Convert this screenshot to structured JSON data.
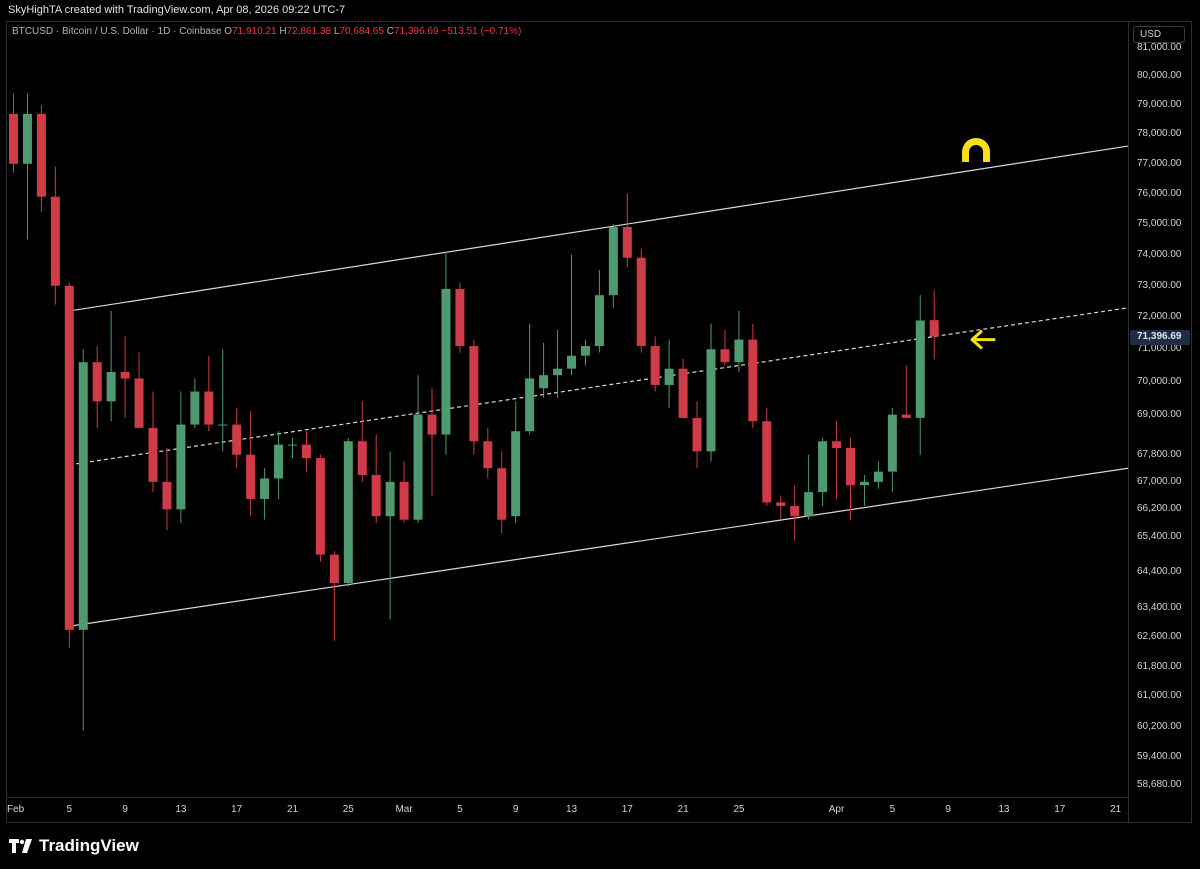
{
  "header": {
    "creator_line": "SkyHighTA created with TradingView.com, Apr 08, 2026 09:22 UTC-7"
  },
  "legend": {
    "symbol": "BTCUSD · Bitcoin / U.S. Dollar · 1D · Coinbase",
    "o_label": "O",
    "o_value": "71,910.21",
    "h_label": "H",
    "h_value": "72,861.38",
    "l_label": "L",
    "l_value": "70,684.65",
    "c_label": "C",
    "c_value": "71,396.69",
    "change": "−513.51 (−0.71%)"
  },
  "axis": {
    "currency": "USD",
    "last_price_label": "71,396.69"
  },
  "footer": {
    "brand": "TradingView"
  },
  "colors": {
    "up": "#4f9a70",
    "down": "#cf3b47",
    "channel": "#d9d9d9",
    "annotation": "#f7e017"
  },
  "chart_data": {
    "type": "candlestick",
    "symbol": "BTCUSD",
    "interval": "1D",
    "y_scale": "log",
    "ylim": [
      58200,
      81500
    ],
    "y_ticks": [
      {
        "value": 81000,
        "label": "81,000.00"
      },
      {
        "value": 80000,
        "label": "80,000.00"
      },
      {
        "value": 79000,
        "label": "79,000.00"
      },
      {
        "value": 78000,
        "label": "78,000.00"
      },
      {
        "value": 77000,
        "label": "77,000.00"
      },
      {
        "value": 76000,
        "label": "76,000.00"
      },
      {
        "value": 75000,
        "label": "75,000.00"
      },
      {
        "value": 74000,
        "label": "74,000.00"
      },
      {
        "value": 73000,
        "label": "73,000.00"
      },
      {
        "value": 72000,
        "label": "72,000.00"
      },
      {
        "value": 71000,
        "label": "71,000.00"
      },
      {
        "value": 70000,
        "label": "70,000.00"
      },
      {
        "value": 69000,
        "label": "69,000.00"
      },
      {
        "value": 67800,
        "label": "67,800.00"
      },
      {
        "value": 67000,
        "label": "67,000.00"
      },
      {
        "value": 66200,
        "label": "66,200.00"
      },
      {
        "value": 65400,
        "label": "65,400.00"
      },
      {
        "value": 64400,
        "label": "64,400.00"
      },
      {
        "value": 63400,
        "label": "63,400.00"
      },
      {
        "value": 62600,
        "label": "62,600.00"
      },
      {
        "value": 61800,
        "label": "61,800.00"
      },
      {
        "value": 61000,
        "label": "61,000.00"
      },
      {
        "value": 60200,
        "label": "60,200.00"
      },
      {
        "value": 59400,
        "label": "59,400.00"
      },
      {
        "value": 58680,
        "label": "58,680.00"
      }
    ],
    "x_ticks": [
      {
        "day": 0,
        "label": "Feb"
      },
      {
        "day": 4,
        "label": "5"
      },
      {
        "day": 8,
        "label": "9"
      },
      {
        "day": 12,
        "label": "13"
      },
      {
        "day": 16,
        "label": "17"
      },
      {
        "day": 20,
        "label": "21"
      },
      {
        "day": 24,
        "label": "25"
      },
      {
        "day": 28,
        "label": "Mar"
      },
      {
        "day": 32,
        "label": "5"
      },
      {
        "day": 36,
        "label": "9"
      },
      {
        "day": 40,
        "label": "13"
      },
      {
        "day": 44,
        "label": "17"
      },
      {
        "day": 48,
        "label": "21"
      },
      {
        "day": 52,
        "label": "25"
      },
      {
        "day": 59,
        "label": "Apr"
      },
      {
        "day": 63,
        "label": "5"
      },
      {
        "day": 67,
        "label": "9"
      },
      {
        "day": 71,
        "label": "13"
      },
      {
        "day": 75,
        "label": "17"
      },
      {
        "day": 79,
        "label": "21"
      }
    ],
    "candles": [
      {
        "date": "2026-02-01",
        "o": 78700,
        "h": 79400,
        "l": 76700,
        "c": 77000
      },
      {
        "date": "2026-02-02",
        "o": 77000,
        "h": 79400,
        "l": 74500,
        "c": 78700
      },
      {
        "date": "2026-02-03",
        "o": 78700,
        "h": 79000,
        "l": 75400,
        "c": 75900
      },
      {
        "date": "2026-02-04",
        "o": 75900,
        "h": 76900,
        "l": 72400,
        "c": 73000
      },
      {
        "date": "2026-02-05",
        "o": 73000,
        "h": 73100,
        "l": 62300,
        "c": 62800
      },
      {
        "date": "2026-02-06",
        "o": 62800,
        "h": 71000,
        "l": 60100,
        "c": 70600
      },
      {
        "date": "2026-02-07",
        "o": 70600,
        "h": 71100,
        "l": 68600,
        "c": 69400
      },
      {
        "date": "2026-02-08",
        "o": 69400,
        "h": 72200,
        "l": 68800,
        "c": 70300
      },
      {
        "date": "2026-02-09",
        "o": 70300,
        "h": 71400,
        "l": 68900,
        "c": 70100
      },
      {
        "date": "2026-02-10",
        "o": 70100,
        "h": 70900,
        "l": 68600,
        "c": 68600
      },
      {
        "date": "2026-02-11",
        "o": 68600,
        "h": 69700,
        "l": 66700,
        "c": 67000
      },
      {
        "date": "2026-02-12",
        "o": 67000,
        "h": 68000,
        "l": 65600,
        "c": 66200
      },
      {
        "date": "2026-02-13",
        "o": 66200,
        "h": 69700,
        "l": 65800,
        "c": 68700
      },
      {
        "date": "2026-02-14",
        "o": 68700,
        "h": 70100,
        "l": 68600,
        "c": 69700
      },
      {
        "date": "2026-02-15",
        "o": 69700,
        "h": 70800,
        "l": 68500,
        "c": 68700
      },
      {
        "date": "2026-02-16",
        "o": 68700,
        "h": 71000,
        "l": 67900,
        "c": 68700
      },
      {
        "date": "2026-02-17",
        "o": 68700,
        "h": 69200,
        "l": 67400,
        "c": 67800
      },
      {
        "date": "2026-02-18",
        "o": 67800,
        "h": 69100,
        "l": 66000,
        "c": 66500
      },
      {
        "date": "2026-02-19",
        "o": 66500,
        "h": 67400,
        "l": 65900,
        "c": 67100
      },
      {
        "date": "2026-02-20",
        "o": 67100,
        "h": 68500,
        "l": 66500,
        "c": 68100
      },
      {
        "date": "2026-02-21",
        "o": 68100,
        "h": 68300,
        "l": 67700,
        "c": 68100
      },
      {
        "date": "2026-02-22",
        "o": 68100,
        "h": 68500,
        "l": 67300,
        "c": 67700
      },
      {
        "date": "2026-02-23",
        "o": 67700,
        "h": 67800,
        "l": 64700,
        "c": 64900
      },
      {
        "date": "2026-02-24",
        "o": 64900,
        "h": 65000,
        "l": 62500,
        "c": 64100
      },
      {
        "date": "2026-02-25",
        "o": 64100,
        "h": 68300,
        "l": 64000,
        "c": 68200
      },
      {
        "date": "2026-02-26",
        "o": 68200,
        "h": 69400,
        "l": 67000,
        "c": 67200
      },
      {
        "date": "2026-02-27",
        "o": 67200,
        "h": 68400,
        "l": 65800,
        "c": 66000
      },
      {
        "date": "2026-02-28",
        "o": 66000,
        "h": 67900,
        "l": 63100,
        "c": 67000
      },
      {
        "date": "2026-03-01",
        "o": 67000,
        "h": 67600,
        "l": 65800,
        "c": 65900
      },
      {
        "date": "2026-03-02",
        "o": 65900,
        "h": 70200,
        "l": 65800,
        "c": 69000
      },
      {
        "date": "2026-03-03",
        "o": 69000,
        "h": 69800,
        "l": 66600,
        "c": 68400
      },
      {
        "date": "2026-03-04",
        "o": 68400,
        "h": 74100,
        "l": 67800,
        "c": 72900
      },
      {
        "date": "2026-03-05",
        "o": 72900,
        "h": 73100,
        "l": 70900,
        "c": 71100
      },
      {
        "date": "2026-03-06",
        "o": 71100,
        "h": 71300,
        "l": 67800,
        "c": 68200
      },
      {
        "date": "2026-03-07",
        "o": 68200,
        "h": 68600,
        "l": 67100,
        "c": 67400
      },
      {
        "date": "2026-03-08",
        "o": 67400,
        "h": 67900,
        "l": 65500,
        "c": 65900
      },
      {
        "date": "2026-03-09",
        "o": 66000,
        "h": 69400,
        "l": 65800,
        "c": 68500
      },
      {
        "date": "2026-03-10",
        "o": 68500,
        "h": 71800,
        "l": 68400,
        "c": 70100
      },
      {
        "date": "2026-03-11",
        "o": 69800,
        "h": 71200,
        "l": 69500,
        "c": 70200
      },
      {
        "date": "2026-03-12",
        "o": 70200,
        "h": 71600,
        "l": 69500,
        "c": 70400
      },
      {
        "date": "2026-03-13",
        "o": 70400,
        "h": 74000,
        "l": 70200,
        "c": 70800
      },
      {
        "date": "2026-03-14",
        "o": 70800,
        "h": 71300,
        "l": 70500,
        "c": 71100
      },
      {
        "date": "2026-03-15",
        "o": 71100,
        "h": 73500,
        "l": 70900,
        "c": 72700
      },
      {
        "date": "2026-03-16",
        "o": 72700,
        "h": 75000,
        "l": 72300,
        "c": 74900
      },
      {
        "date": "2026-03-17",
        "o": 74900,
        "h": 76000,
        "l": 73600,
        "c": 73900
      },
      {
        "date": "2026-03-18",
        "o": 73900,
        "h": 74200,
        "l": 70900,
        "c": 71100
      },
      {
        "date": "2026-03-19",
        "o": 71100,
        "h": 71400,
        "l": 69700,
        "c": 69900
      },
      {
        "date": "2026-03-20",
        "o": 69900,
        "h": 71300,
        "l": 69200,
        "c": 70400
      },
      {
        "date": "2026-03-21",
        "o": 70400,
        "h": 70700,
        "l": 68900,
        "c": 68900
      },
      {
        "date": "2026-03-22",
        "o": 68900,
        "h": 69400,
        "l": 67400,
        "c": 67900
      },
      {
        "date": "2026-03-23",
        "o": 67900,
        "h": 71800,
        "l": 67600,
        "c": 71000
      },
      {
        "date": "2026-03-24",
        "o": 71000,
        "h": 71600,
        "l": 70500,
        "c": 70600
      },
      {
        "date": "2026-03-25",
        "o": 70600,
        "h": 72200,
        "l": 70300,
        "c": 71300
      },
      {
        "date": "2026-03-26",
        "o": 71300,
        "h": 71800,
        "l": 68600,
        "c": 68800
      },
      {
        "date": "2026-03-27",
        "o": 68800,
        "h": 69200,
        "l": 66300,
        "c": 66400
      },
      {
        "date": "2026-03-28",
        "o": 66400,
        "h": 66600,
        "l": 65900,
        "c": 66300
      },
      {
        "date": "2026-03-29",
        "o": 66300,
        "h": 66900,
        "l": 65300,
        "c": 66000
      },
      {
        "date": "2026-03-30",
        "o": 66000,
        "h": 67800,
        "l": 65900,
        "c": 66700
      },
      {
        "date": "2026-03-31",
        "o": 66700,
        "h": 68300,
        "l": 66300,
        "c": 68200
      },
      {
        "date": "2026-04-01",
        "o": 68200,
        "h": 68800,
        "l": 66500,
        "c": 68000
      },
      {
        "date": "2026-04-02",
        "o": 68000,
        "h": 68300,
        "l": 65900,
        "c": 66900
      },
      {
        "date": "2026-04-03",
        "o": 66900,
        "h": 67200,
        "l": 66300,
        "c": 67000
      },
      {
        "date": "2026-04-04",
        "o": 67000,
        "h": 67600,
        "l": 66800,
        "c": 67300
      },
      {
        "date": "2026-04-05",
        "o": 67300,
        "h": 69200,
        "l": 66700,
        "c": 69000
      },
      {
        "date": "2026-04-06",
        "o": 69000,
        "h": 70500,
        "l": 68900,
        "c": 68900
      },
      {
        "date": "2026-04-07",
        "o": 68900,
        "h": 72700,
        "l": 67800,
        "c": 71900
      },
      {
        "date": "2026-04-08",
        "o": 71910,
        "h": 72861,
        "l": 70685,
        "c": 71397
      }
    ],
    "annotations": [
      {
        "type": "trendline",
        "name": "channel-upper",
        "from": {
          "day": 4,
          "value": 72200
        },
        "to": {
          "day": 80,
          "value": 77600
        }
      },
      {
        "type": "trendline",
        "name": "channel-mid",
        "style": "dashed",
        "from": {
          "day": 4,
          "value": 67500
        },
        "to": {
          "day": 80,
          "value": 72300
        }
      },
      {
        "type": "trendline",
        "name": "channel-lower",
        "from": {
          "day": 4,
          "value": 62900
        },
        "to": {
          "day": 80,
          "value": 67400
        }
      },
      {
        "type": "arrow",
        "name": "price-arrow",
        "day": 69,
        "value": 71300
      },
      {
        "type": "magnet",
        "name": "magnet-marker",
        "day": 69,
        "value": 77400
      }
    ]
  }
}
